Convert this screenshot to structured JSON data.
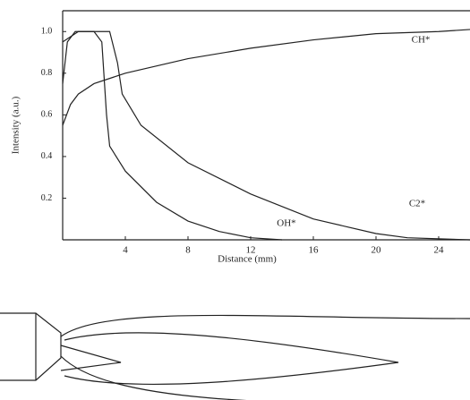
{
  "chart_data": {
    "type": "line",
    "xlabel": "Distance (mm)",
    "ylabel": "Intensity (a.u.)",
    "xlim": [
      0,
      26
    ],
    "ylim": [
      0,
      1.1
    ],
    "xticks": [
      4,
      8,
      12,
      16,
      20,
      24
    ],
    "yticks": [
      0.2,
      0.4,
      0.6,
      {
        "value": 1,
        "label": "1.0"
      },
      0.8
    ],
    "series": [
      {
        "name": "CH*",
        "color": "#222222",
        "x": [
          0,
          0.5,
          1,
          2,
          4,
          8,
          12,
          16,
          20,
          24,
          26
        ],
        "values": [
          0.55,
          0.65,
          0.7,
          0.75,
          0.8,
          0.87,
          0.92,
          0.96,
          0.99,
          1.0,
          1.01
        ]
      },
      {
        "name": "OH*",
        "color": "#222222",
        "x": [
          0,
          0.3,
          0.8,
          2,
          2.5,
          2.8,
          3,
          4,
          6,
          8,
          10,
          12,
          14
        ],
        "values": [
          0.75,
          0.95,
          1.0,
          1.0,
          0.95,
          0.6,
          0.45,
          0.33,
          0.18,
          0.09,
          0.04,
          0.01,
          0
        ]
      },
      {
        "name": "C2*",
        "color": "#222222",
        "x": [
          0,
          1,
          3,
          3.5,
          3.8,
          5,
          8,
          12,
          16,
          20,
          22,
          26
        ],
        "values": [
          0.95,
          1.0,
          1.0,
          0.85,
          0.7,
          0.55,
          0.37,
          0.22,
          0.1,
          0.03,
          0.01,
          0
        ]
      }
    ]
  }
}
